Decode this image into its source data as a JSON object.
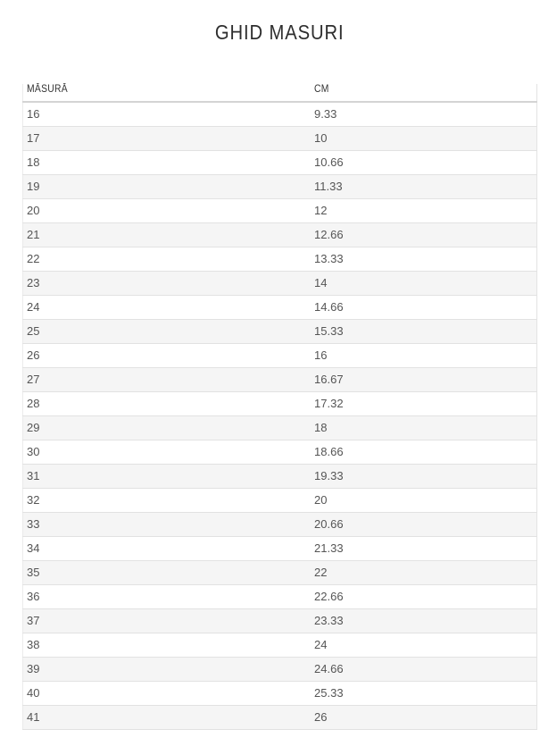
{
  "page": {
    "title": "GHID MASURI"
  },
  "table": {
    "headers": {
      "size": "MĂSURĂ",
      "cm": "CM"
    },
    "rows": [
      {
        "size": "16",
        "cm": "9.33"
      },
      {
        "size": "17",
        "cm": "10"
      },
      {
        "size": "18",
        "cm": "10.66"
      },
      {
        "size": "19",
        "cm": "11.33"
      },
      {
        "size": "20",
        "cm": "12"
      },
      {
        "size": "21",
        "cm": "12.66"
      },
      {
        "size": "22",
        "cm": "13.33"
      },
      {
        "size": "23",
        "cm": "14"
      },
      {
        "size": "24",
        "cm": "14.66"
      },
      {
        "size": "25",
        "cm": "15.33"
      },
      {
        "size": "26",
        "cm": "16"
      },
      {
        "size": "27",
        "cm": "16.67"
      },
      {
        "size": "28",
        "cm": "17.32"
      },
      {
        "size": "29",
        "cm": "18"
      },
      {
        "size": "30",
        "cm": "18.66"
      },
      {
        "size": "31",
        "cm": "19.33"
      },
      {
        "size": "32",
        "cm": "20"
      },
      {
        "size": "33",
        "cm": "20.66"
      },
      {
        "size": "34",
        "cm": "21.33"
      },
      {
        "size": "35",
        "cm": "22"
      },
      {
        "size": "36",
        "cm": "22.66"
      },
      {
        "size": "37",
        "cm": "23.33"
      },
      {
        "size": "38",
        "cm": "24"
      },
      {
        "size": "39",
        "cm": "24.66"
      },
      {
        "size": "40",
        "cm": "25.33"
      },
      {
        "size": "41",
        "cm": "26"
      }
    ]
  },
  "colors": {
    "title_text": "#2e2e2e",
    "body_text": "#555555",
    "stripe": "#f5f5f5",
    "row_border": "#e2e2e2",
    "header_border": "#d4d4d4"
  }
}
